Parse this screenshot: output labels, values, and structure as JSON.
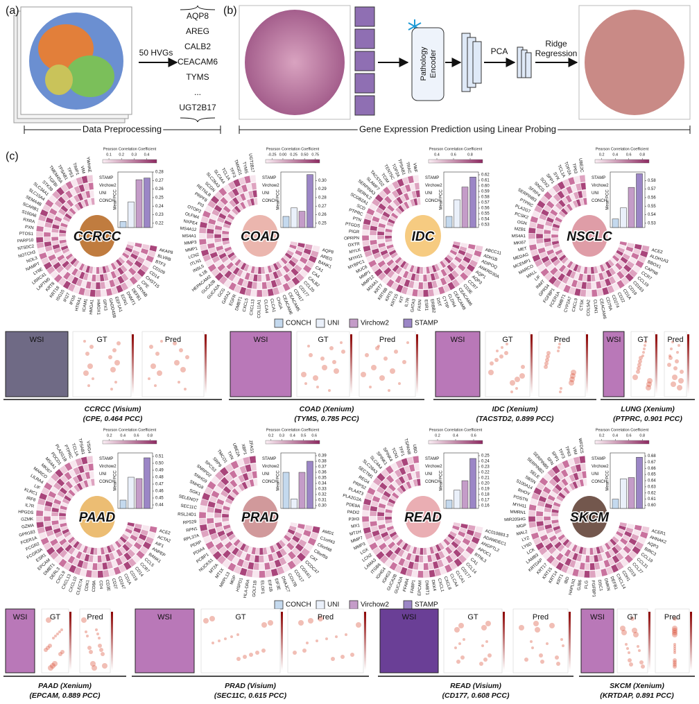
{
  "panel_a": {
    "label": "(a)",
    "arrow_label": "50 HVGs",
    "genes": [
      "AQP8",
      "AREG",
      "CALB2",
      "CEACAM6",
      "TYMS",
      "...",
      "UGT2B17"
    ],
    "caption": "Data Preprocessing"
  },
  "panel_b": {
    "label": "(b)",
    "encoder": [
      "Pathology",
      "Encoder"
    ],
    "pca": "PCA",
    "regression": [
      "Ridge",
      "Regression"
    ],
    "caption": "Gene Expression Prediction using Linear Probing"
  },
  "panel_c": {
    "label": "(c)",
    "models": [
      "CONCH",
      "UNI",
      "Virchow2",
      "STAMP"
    ],
    "model_colors": [
      "#c4d9ee",
      "#eaf0fa",
      "#c49cc8",
      "#9b86c6"
    ],
    "bar_axis_label": "Mean PCC",
    "colorbar_title": "Pearson Correlation Coefficient",
    "circles": [
      {
        "name": "CCRCC",
        "mean_pcc": [
          0.222,
          0.245,
          0.271,
          0.273
        ],
        "ylim": [
          0.215,
          0.28
        ],
        "yticks": [
          0.22,
          0.23,
          0.24,
          0.25,
          0.26,
          0.27,
          0.28
        ],
        "colorbar_lim": [
          0.05,
          0.48
        ],
        "colorbar_ticks": [
          0.1,
          0.2,
          0.3,
          0.4
        ],
        "genes": [
          "AKAP8",
          "BLVRB",
          "BTF3",
          "CD109",
          "CD14",
          "CHST15",
          "CPE",
          "CRYAB",
          "DEFB1",
          "DNMT1",
          "EDN1",
          "EEF1A1",
          "GADD45B",
          "GPX3",
          "HMOX1",
          "HMGA1",
          "ICAM1",
          "HTRA1",
          "IFI16",
          "IFI27",
          "ISG15",
          "KRT18",
          "KRT8",
          "LAPTM5",
          "LRRC41",
          "LY6E",
          "NAMPT",
          "NOL3",
          "NOTCH3",
          "NT5DC2",
          "PARP10",
          "PTOS1",
          "PXN",
          "RXRA",
          "S100A6",
          "SCARB1",
          "SEMA4B",
          "SLC15A4",
          "SLC34A1",
          "STK39",
          "TGFBI",
          "TMEM45A",
          "TPSAB1",
          "TP53",
          "TIMP1",
          "VIM",
          "YWHAE"
        ]
      },
      {
        "name": "COAD",
        "mean_pcc": [
          0.258,
          0.268,
          0.264,
          0.307
        ],
        "ylim": [
          0.245,
          0.31
        ],
        "yticks": [
          0.25,
          0.26,
          0.27,
          0.28,
          0.29,
          {
            "value": 0.3,
            "label": "0.30"
          }
        ],
        "colorbar_lim": [
          -0.4,
          0.85
        ],
        "colorbar_ticks": [
          -0.25,
          {
            "value": 0,
            "label": "0.00"
          },
          0.25,
          {
            "value": 0.5,
            "label": "0.50"
          },
          0.75
        ],
        "genes": [
          "AQP8",
          "AREG",
          "BANK1",
          "CA1",
          "CA4",
          "CALB2",
          "CCL20",
          "CD177",
          "CDH17",
          "CEACAM5",
          "CEACAM6",
          "CHGA",
          "CLCA1",
          "CLCA4",
          "COL11A1",
          "CXCL13",
          "CXCL5",
          "DMBT1",
          "EGFR",
          "GATA2",
          "GCG",
          "GUCA2A",
          "GUCA2B",
          "HEPACAM2",
          "IL1B",
          "INSL5",
          "ITLN1",
          "LCN2",
          "MMP1",
          "MMP3",
          "MS4A1",
          "MS4A12",
          "NXPE4",
          "OLFM4",
          "OTOP2",
          "PI3",
          "PRPF8",
          "RETNLB",
          "SCGN",
          "SLC26A3",
          "SLC4A4",
          "TCL1A",
          "TFF3",
          "TMIGD1",
          "TYMS",
          "UGT2B17"
        ]
      },
      {
        "name": "IDC",
        "mean_pcc": [
          0.545,
          0.575,
          0.598,
          0.616
        ],
        "ylim": [
          0.525,
          0.625
        ],
        "yticks": [
          0.53,
          0.54,
          0.55,
          0.56,
          0.57,
          0.58,
          0.59,
          {
            "value": 0.6,
            "label": "0.60"
          },
          0.61,
          0.62
        ],
        "colorbar_lim": [
          0.3,
          0.95
        ],
        "colorbar_ticks": [
          0.4,
          0.6,
          0.8
        ],
        "genes": [
          "ABCC11",
          "ADH1B",
          "ADIPOQ",
          "ANKRD30A",
          "AQP1",
          "AQP3",
          "CCR7",
          "CD3E",
          "CEACAM6",
          "CEACAM8",
          "CLDN4",
          "CYTIP",
          "DST",
          "ERBB2",
          "ESR1",
          "FASN",
          "GATA3",
          "IL7R",
          "KIT",
          "KRT15",
          "KRT5",
          "KRT6B",
          "KRT7",
          "MS4A1",
          "MMP12",
          "MMP1",
          "MUC6",
          "MYBPC1",
          "MYH11",
          "MYLK",
          "OXTR",
          "OPRPN",
          "PIGR",
          "PTGDS",
          "PTN",
          "PTPRC",
          "SCD",
          "SCGB2A1",
          "SERHL2",
          "SERPINA3",
          "SLAMF7",
          "TACSTD2",
          "TCIM",
          "TENT5C",
          "TOP2A",
          "TPSAB1",
          "TRAC",
          "VWF"
        ]
      },
      {
        "name": "NSCLC",
        "mean_pcc": [
          0.535,
          0.548,
          0.572,
          0.588
        ],
        "ylim": [
          0.525,
          0.59
        ],
        "yticks": [
          0.53,
          0.54,
          0.55,
          0.56,
          0.57,
          0.58
        ],
        "colorbar_lim": [
          0.1,
          0.9
        ],
        "colorbar_ticks": [
          0.2,
          0.4,
          0.6,
          0.8
        ],
        "genes": [
          "ACE2",
          "ALDH1A3",
          "BBOX1",
          "CAPN8",
          "CCR7",
          "CCL19",
          "CD163",
          "CD19",
          "CD1A",
          "CD22",
          "CD274",
          "CD79A",
          "CEACAM6",
          "CLDN1",
          "COL5A2",
          "CTSK",
          "CXCL9",
          "CYP2A7",
          "DMBT1",
          "FCER1A",
          "FGFBP1",
          "GPR34",
          "INMT",
          "LIF",
          "MALL",
          "MARCO",
          "MCEMP1",
          "MEDAG",
          "MET",
          "MKI67",
          "MS4A1",
          "MZB1",
          "OGN",
          "PCSK2",
          "PLA2G7",
          "PTPRC",
          "SERPINB3",
          "SFRP4",
          "SNCG",
          "SOX2",
          "SPP1",
          "SYK",
          "TCL1A",
          "TOP2A",
          "TP63",
          "UBE2C"
        ]
      },
      {
        "name": "PAAD",
        "mean_pcc": [
          0.447,
          0.48,
          0.478,
          0.508
        ],
        "ylim": [
          0.435,
          0.515
        ],
        "yticks": [
          0.44,
          0.45,
          0.46,
          0.47,
          0.48,
          0.49,
          {
            "value": 0.5,
            "label": "0.50"
          },
          0.51
        ],
        "colorbar_lim": [
          0.1,
          0.9
        ],
        "colorbar_ticks": [
          0.2,
          0.4,
          0.6,
          0.8
        ],
        "genes": [
          "ACE2",
          "ACTA2",
          "AIF1",
          "ANPEP",
          "BANK1",
          "CCL5",
          "CCR7",
          "CD14",
          "CD19",
          "CD1A",
          "CD247",
          "CD27",
          "CD3E",
          "CD4",
          "CD8A",
          "CDK1",
          "CLEC7A",
          "CXCL10",
          "CXCL13",
          "CXCL9",
          "DERL3",
          "DMBT1",
          "EPCAM",
          "ESR1",
          "FCGR3A",
          "FCGR2",
          "FCER1A",
          "GPR183",
          "GZMA",
          "GZMK",
          "HPGDS",
          "IL7R",
          "IRF8",
          "KLRC1",
          "LIF",
          "LILRA4",
          "MARCO",
          "MKI67",
          "MS4A1",
          "PDCD1",
          "PLA2G1B",
          "PTPRC",
          "TCL1A",
          "TPSAB1",
          "VSIG4"
        ]
      },
      {
        "name": "PRAD",
        "mean_pcc": [
          0.36,
          0.312,
          0.36,
          0.38
        ],
        "ylim": [
          0.295,
          0.395
        ],
        "yticks": [
          {
            "value": 0.3,
            "label": "0.30"
          },
          0.31,
          0.32,
          0.33,
          0.34,
          0.35,
          0.36,
          0.37,
          0.38,
          0.39
        ],
        "colorbar_lim": [
          0.15,
          0.65
        ],
        "colorbar_ticks": [
          0.2,
          0.3,
          0.4,
          0.5,
          0.6
        ],
        "genes": [
          "AMD1",
          "C1orf43",
          "C6orf48",
          "C8orf59",
          "CAT",
          "CCDC47",
          "COX4I1",
          "COX17",
          "COX7B",
          "DNAJC7",
          "EIF3E",
          "EIF1B",
          "ELOF1",
          "GOLT1B",
          "HLA-DRA",
          "HSPD1",
          "MGP",
          "MRPL13",
          "MT1X",
          "MT2A",
          "NUCKS1",
          "PCBP1",
          "PDIA4",
          "PERP",
          "RPL37A",
          "RPN1",
          "RPS29",
          "RSL24D1",
          "SEC11C",
          "SELENOT",
          "SGK1",
          "SNHG8",
          "SNHG9",
          "SNRPD2",
          "SPCS3",
          "SRP9",
          "TMCO1",
          "TXN",
          "UBE2A",
          "XBP1",
          "ZFAS1"
        ]
      },
      {
        "name": "READ",
        "mean_pcc": [
          0.17,
          0.188,
          0.205,
          0.245
        ],
        "ylim": [
          0.155,
          0.255
        ],
        "yticks": [
          0.16,
          0.17,
          0.18,
          0.19,
          {
            "value": 0.2,
            "label": "0.20"
          },
          0.21,
          0.22,
          0.23,
          0.24,
          0.25
        ],
        "colorbar_lim": [
          0.1,
          0.7
        ],
        "colorbar_ticks": [
          0.2,
          0.4,
          0.6
        ],
        "genes": [
          "AC010883.3",
          "ADAMDEC1",
          "ANGPTL2",
          "APOC1",
          "BTNL3",
          "CA1",
          "CCL14",
          "CD177",
          "CLCA1",
          "CLCA4",
          "CXCL8",
          "CXCL1",
          "DKK4",
          "DMBT1",
          "EPCAM",
          "FABP1",
          "FFAR4",
          "GUCA2A",
          "GUCA2B",
          "IGHG3",
          "IGHG4",
          "ITGB6",
          "LAMA3",
          "LCN2",
          "LOX",
          "MMP3",
          "MMP7",
          "MT1H",
          "MX1",
          "P3H3",
          "PADI2",
          "PDE9A",
          "PLA2G2A",
          "PLAAT3",
          "PRPS2",
          "REG4",
          "SECTM1",
          "SLC28A3",
          "SLC4A4",
          "SPINK1",
          "SPINK4",
          "TCN1",
          "TFF1",
          "TSPAN8",
          "UBD"
        ]
      },
      {
        "name": "SKCM",
        "mean_pcc": [
          0.61,
          0.643,
          0.645,
          0.678
        ],
        "ylim": [
          0.595,
          0.685
        ],
        "yticks": [
          {
            "value": 0.6,
            "label": "0.60"
          },
          0.61,
          0.62,
          0.63,
          0.64,
          0.65,
          0.66,
          0.67,
          0.68
        ],
        "colorbar_lim": [
          0.1,
          0.9
        ],
        "colorbar_ticks": [
          0.2,
          0.4,
          0.6,
          0.8
        ],
        "genes": [
          "ACER1",
          "AHNAK2",
          "AQP3",
          "BIRC3",
          "CCL19",
          "CCL21",
          "CCL27",
          "CD19",
          "CDH1",
          "CXCL14",
          "DEFB1",
          "DMKN",
          "DSC1",
          "FGFBP1",
          "FLG",
          "GJB6",
          "HAPLN1",
          "IBD",
          "KRT1",
          "KRT14",
          "KRT15",
          "KRT17",
          "KRTDAP",
          "LAMB3",
          "LCK",
          "LY6D",
          "LYZ",
          "MAL2",
          "MGP",
          "MIR205HG",
          "MMRN1",
          "MYH11",
          "POSTN",
          "RHOV",
          "S100A14",
          "SBSN",
          "SELE",
          "SERPINB2",
          "SERPINB5",
          "SFN",
          "SPP1",
          "TFF3",
          "TP63",
          "VIM",
          "WFDC5"
        ]
      }
    ],
    "examples": [
      {
        "labels": [
          "WSI",
          "GT",
          "Pred"
        ],
        "title": "CCRCC (Visium)",
        "subtitle": "(CPE, 0.464 PCC)"
      },
      {
        "labels": [
          "WSI",
          "GT",
          "Pred"
        ],
        "title": "COAD (Xenium)",
        "subtitle": "(TYMS, 0.785 PCC)"
      },
      {
        "labels": [
          "WSI",
          "GT",
          "Pred"
        ],
        "title": "IDC (Xenium)",
        "subtitle": "(TACSTD2, 0.899 PCC)"
      },
      {
        "labels": [
          "WSI",
          "GT",
          "Pred"
        ],
        "title": "LUNG (Xenium)",
        "subtitle": "(PTPRC, 0.901 PCC)"
      },
      {
        "labels": [
          "WSI",
          "GT",
          "Pred"
        ],
        "title": "PAAD (Xenium)",
        "subtitle": "(EPCAM, 0.889 PCC)"
      },
      {
        "labels": [
          "WSI",
          "GT",
          "Pred"
        ],
        "title": "PRAD (Visium)",
        "subtitle": "(SEC11C, 0.615 PCC)"
      },
      {
        "labels": [
          "WSI",
          "GT",
          "Pred"
        ],
        "title": "READ (Visium)",
        "subtitle": "(CD177, 0.608 PCC)"
      },
      {
        "labels": [
          "WSI",
          "GT",
          "Pred"
        ],
        "title": "SKCM (Xenium)",
        "subtitle": "(KRTDAP, 0.891 PCC)"
      }
    ]
  }
}
